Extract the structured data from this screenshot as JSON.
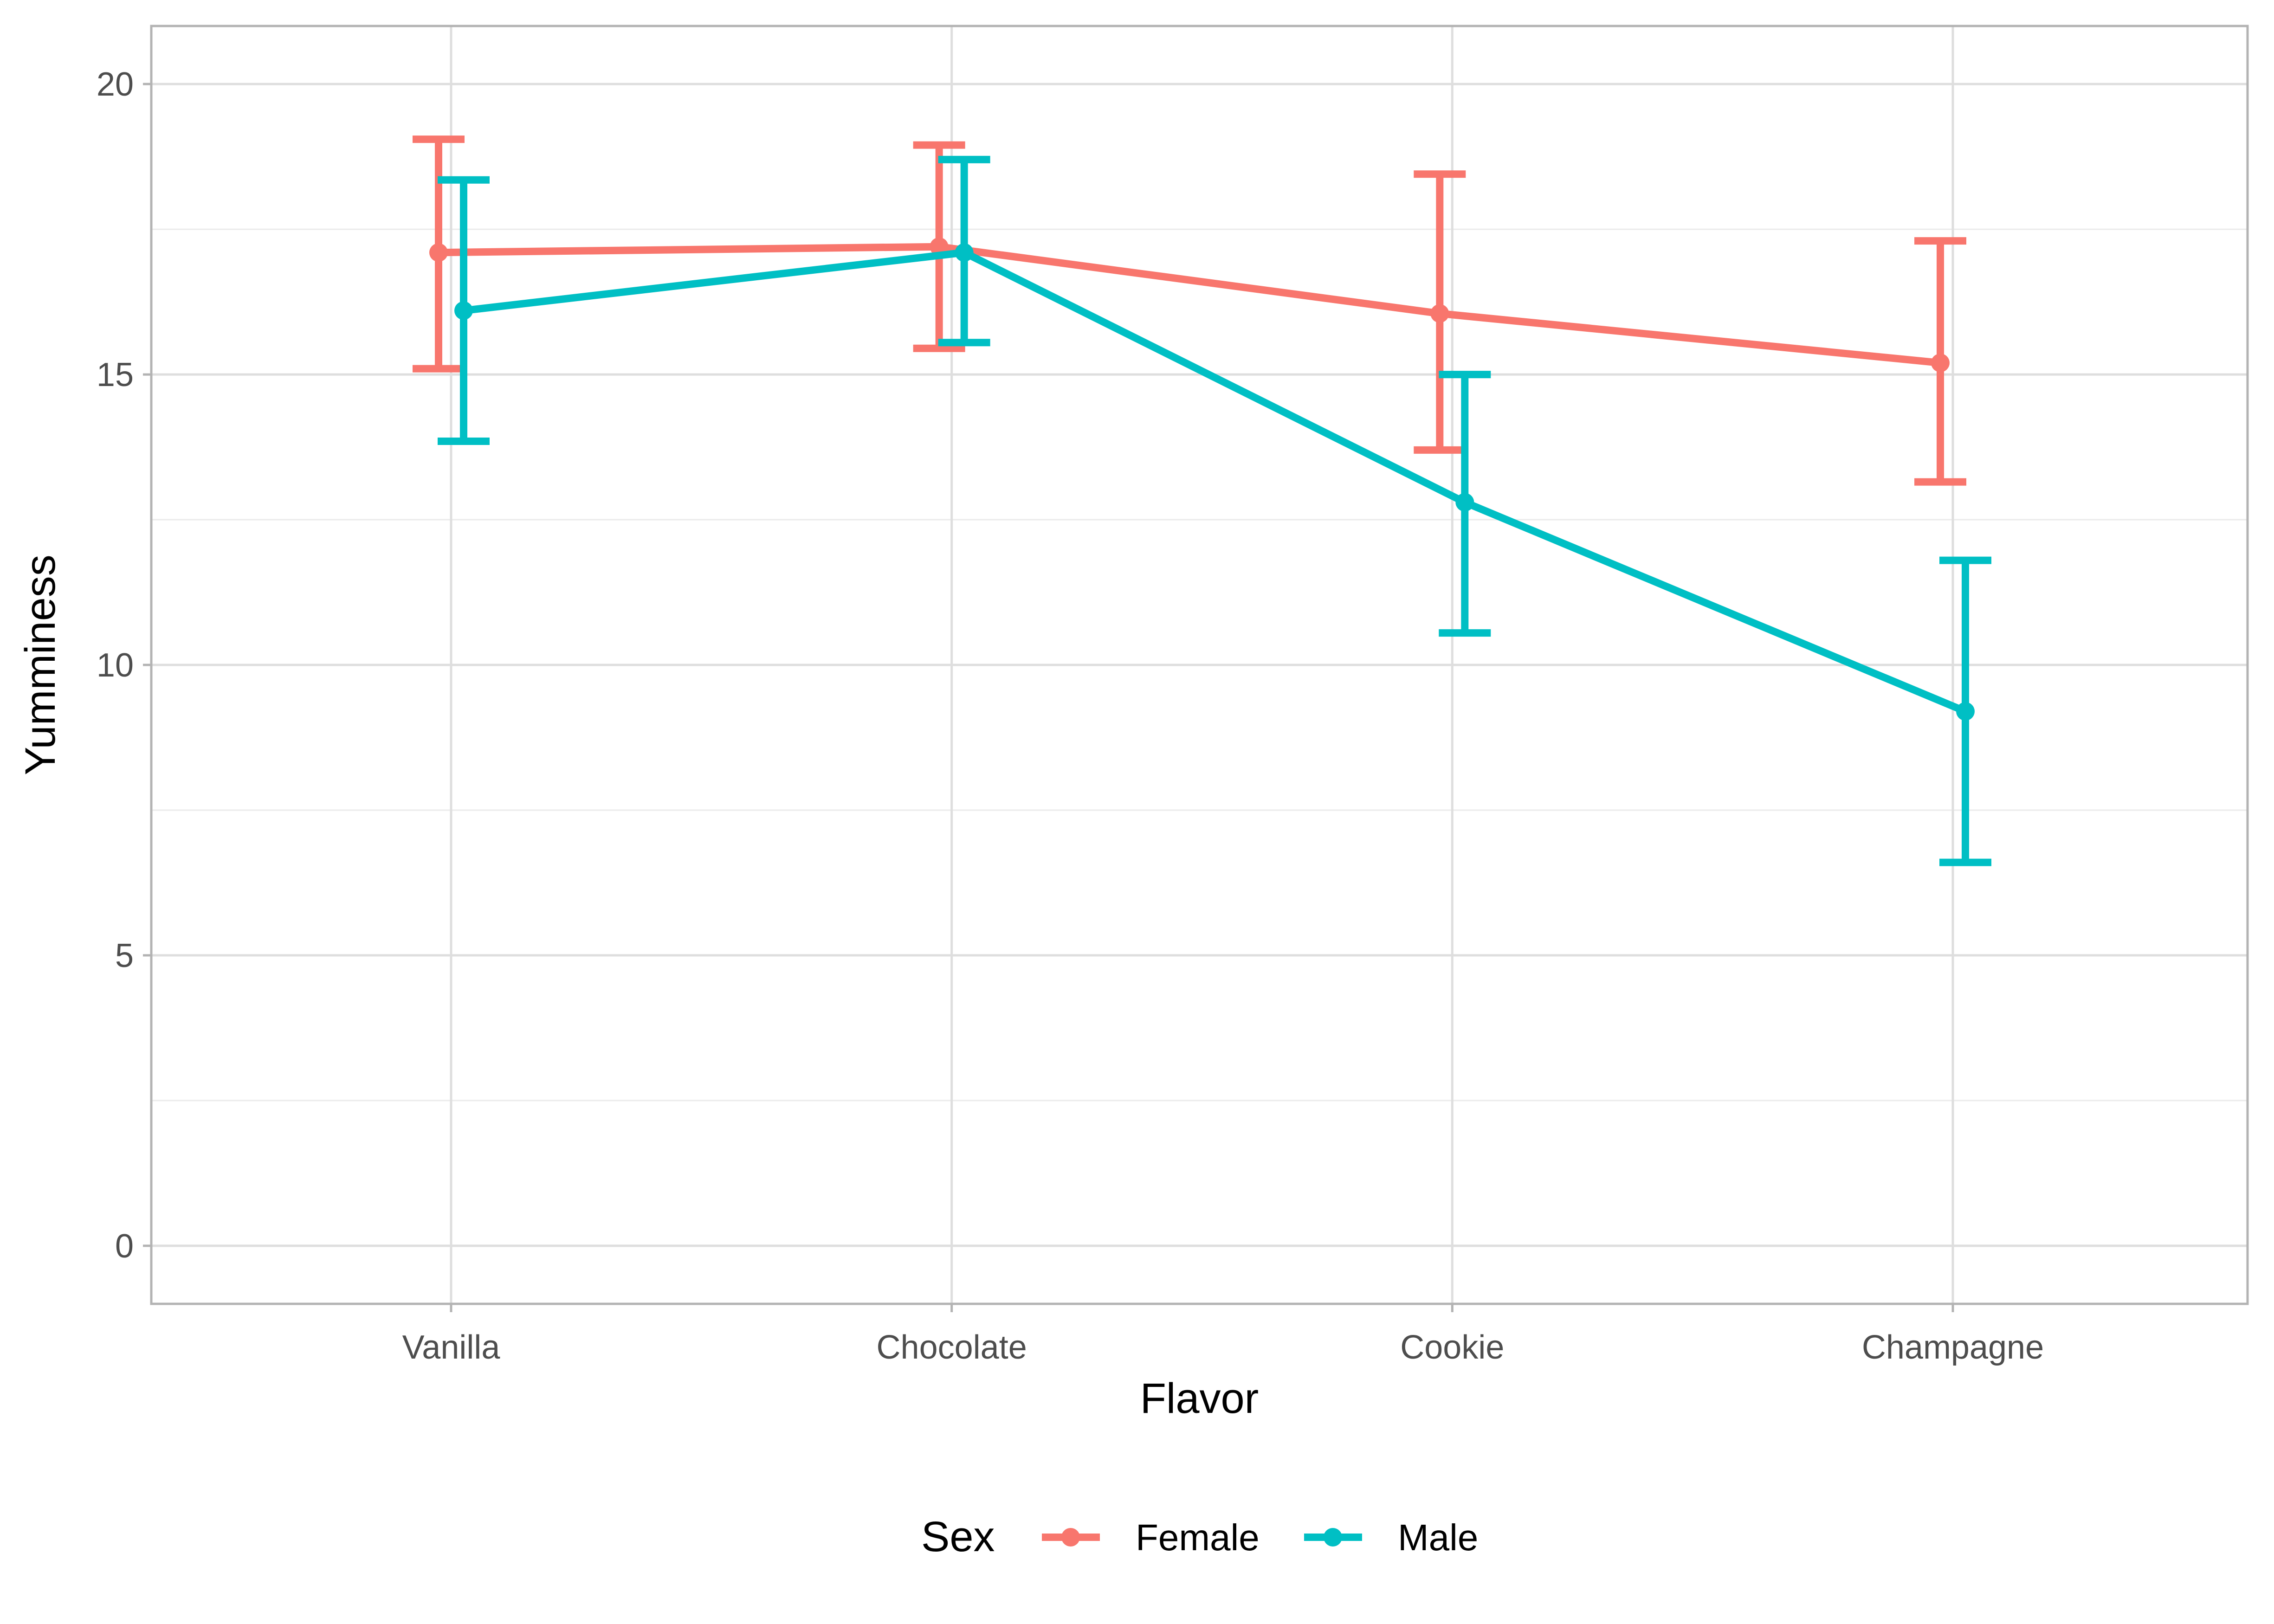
{
  "chart_data": {
    "type": "line",
    "xlabel": "Flavor",
    "ylabel": "Yumminess",
    "categories": [
      "Vanilla",
      "Chocolate",
      "Cookie",
      "Champagne"
    ],
    "ylim": [
      -1,
      21
    ],
    "yticks": [
      0,
      5,
      10,
      15,
      20
    ],
    "grid": true,
    "legend": {
      "title": "Sex",
      "position": "bottom"
    },
    "series": [
      {
        "name": "Female",
        "color": "#F8766D",
        "values": [
          17.1,
          17.2,
          16.05,
          15.2
        ],
        "lower": [
          15.1,
          15.45,
          13.7,
          13.15
        ],
        "upper": [
          19.05,
          18.95,
          18.45,
          17.3
        ]
      },
      {
        "name": "Male",
        "color": "#00BFC4",
        "values": [
          16.1,
          17.1,
          12.8,
          9.2
        ],
        "lower": [
          13.85,
          15.55,
          10.55,
          6.6
        ],
        "upper": [
          18.35,
          18.7,
          15.0,
          11.8
        ]
      }
    ]
  }
}
